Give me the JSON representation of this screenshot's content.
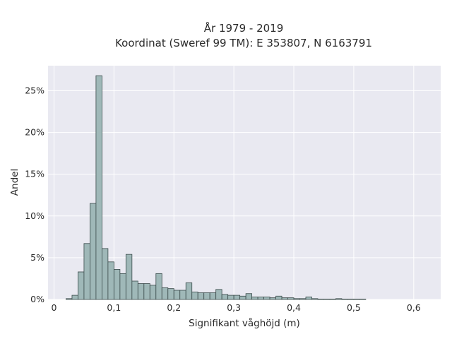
{
  "chart_data": {
    "type": "bar",
    "title": "År 1979 - 2019",
    "subtitle": "Koordinat (Sweref 99 TM): E 353807, N 6163791",
    "xlabel": "Signifikant våghöjd (m)",
    "ylabel": "Andel",
    "xlim": [
      -0.01,
      0.645
    ],
    "ylim": [
      0,
      0.28
    ],
    "grid": true,
    "x_ticks": [
      {
        "value": 0,
        "label": "0"
      },
      {
        "value": 0.1,
        "label": "0,1"
      },
      {
        "value": 0.2,
        "label": "0,2"
      },
      {
        "value": 0.3,
        "label": "0,3"
      },
      {
        "value": 0.4,
        "label": "0,4"
      },
      {
        "value": 0.5,
        "label": "0,5"
      },
      {
        "value": 0.6,
        "label": "0,6"
      }
    ],
    "y_ticks": [
      {
        "value": 0,
        "label": "0%"
      },
      {
        "value": 0.05,
        "label": "5%"
      },
      {
        "value": 0.1,
        "label": "10%"
      },
      {
        "value": 0.15,
        "label": "15%"
      },
      {
        "value": 0.2,
        "label": "20%"
      },
      {
        "value": 0.25,
        "label": "25%"
      }
    ],
    "bin_start": 0.02,
    "bin_width": 0.01,
    "values": [
      0.001,
      0.005,
      0.033,
      0.067,
      0.115,
      0.268,
      0.061,
      0.045,
      0.036,
      0.031,
      0.054,
      0.022,
      0.019,
      0.019,
      0.017,
      0.031,
      0.014,
      0.013,
      0.011,
      0.011,
      0.02,
      0.009,
      0.008,
      0.008,
      0.008,
      0.012,
      0.006,
      0.005,
      0.005,
      0.004,
      0.007,
      0.003,
      0.003,
      0.003,
      0.002,
      0.004,
      0.002,
      0.002,
      0.001,
      0.001,
      0.003,
      0.001,
      0.0005,
      0.0005,
      0.0005,
      0.001,
      0.0005,
      0.0005,
      0.0005,
      0.0005
    ],
    "colors": {
      "bar_fill": "#9fb8b8",
      "bar_stroke": "#3a4a4a",
      "plot_bg": "#e9e9f1",
      "grid": "#ffffff"
    }
  }
}
